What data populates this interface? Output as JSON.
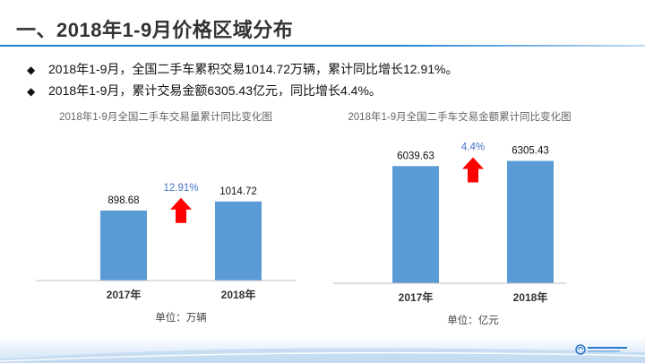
{
  "header": {
    "title": "一、2018年1-9月价格区域分布"
  },
  "bullets": [
    {
      "icon": "diamond-bullet-icon",
      "text": "2018年1-9月，全国二手车累积交易1014.72万辆，累计同比增长12.91%。"
    },
    {
      "icon": "diamond-bullet-icon",
      "text": "2018年1-9月，累计交易金额6305.43亿元，同比增长4.4%。"
    }
  ],
  "colors": {
    "bar": "#5b9bd5",
    "arrow": "#ff0000",
    "growth_label": "#4472c4",
    "axis": "#bfbfbf",
    "title_rule": "#1f7fd0"
  },
  "chart_data": [
    {
      "type": "bar",
      "title": "2018年1-9月全国二手车交易量累计同比变化图",
      "categories": [
        "2017年",
        "2018年"
      ],
      "values": [
        898.68,
        1014.72
      ],
      "value_labels": [
        "898.68",
        "1014.72"
      ],
      "growth_label": "12.91%",
      "unit_note": "单位：万辆",
      "ylim": [
        0,
        1300
      ],
      "grid": false,
      "legend": "none"
    },
    {
      "type": "bar",
      "title": "2018年1-9月全国二手车交易金额累计同比变化图",
      "categories": [
        "2017年",
        "2018年"
      ],
      "values": [
        6039.63,
        6305.43
      ],
      "value_labels": [
        "6039.63",
        "6305.43"
      ],
      "growth_label": "4.4%",
      "unit_note": "单位：亿元",
      "ylim": [
        0,
        7300
      ],
      "grid": false,
      "legend": "none"
    }
  ]
}
